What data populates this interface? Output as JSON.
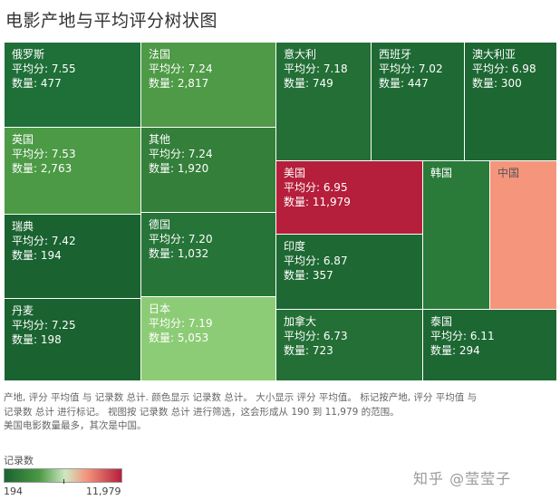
{
  "title": "电影产地与平均评分树状图",
  "chart_data": {
    "type": "treemap",
    "size_measure": "评分 平均值",
    "color_measure": "记录数",
    "tiles": [
      {
        "country": "俄罗斯",
        "avg_label": "平均分: 7.55",
        "count_label": "数量: 477",
        "avg": 7.55,
        "count": 477,
        "color": "#1f6f38"
      },
      {
        "country": "法国",
        "avg_label": "平均分: 7.24",
        "count_label": "数量: 2,817",
        "avg": 7.24,
        "count": 2817,
        "color": "#4e9a46"
      },
      {
        "country": "意大利",
        "avg_label": "平均分: 7.18",
        "count_label": "数量: 749",
        "avg": 7.18,
        "count": 749,
        "color": "#236f36"
      },
      {
        "country": "西班牙",
        "avg_label": "平均分: 7.02",
        "count_label": "数量: 447",
        "avg": 7.02,
        "count": 447,
        "color": "#1f6a34"
      },
      {
        "country": "澳大利亚",
        "avg_label": "平均分: 6.98",
        "count_label": "数量: 300",
        "avg": 6.98,
        "count": 300,
        "color": "#1d6732"
      },
      {
        "country": "英国",
        "avg_label": "平均分: 7.53",
        "count_label": "数量: 2,763",
        "avg": 7.53,
        "count": 2763,
        "color": "#4c9a45"
      },
      {
        "country": "其他",
        "avg_label": "平均分: 7.24",
        "count_label": "数量: 1,920",
        "avg": 7.24,
        "count": 1920,
        "color": "#347f3a"
      },
      {
        "country": "美国",
        "avg_label": "平均分: 6.95",
        "count_label": "数量: 11,979",
        "avg": 6.95,
        "count": 11979,
        "color": "#b51f3b"
      },
      {
        "country": "韩国",
        "avg_label": "",
        "count_label": "",
        "avg": null,
        "count": null,
        "color": "#2a7a3a"
      },
      {
        "country": "中国",
        "avg_label": "",
        "count_label": "",
        "avg": null,
        "count": null,
        "color": "#f5957c"
      },
      {
        "country": "瑞典",
        "avg_label": "平均分: 7.42",
        "count_label": "数量: 194",
        "avg": 7.42,
        "count": 194,
        "color": "#1a6330"
      },
      {
        "country": "德国",
        "avg_label": "平均分: 7.20",
        "count_label": "数量: 1,032",
        "avg": 7.2,
        "count": 1032,
        "color": "#277439"
      },
      {
        "country": "印度",
        "avg_label": "平均分: 6.87",
        "count_label": "数量: 357",
        "avg": 6.87,
        "count": 357,
        "color": "#1e6833"
      },
      {
        "country": "丹麦",
        "avg_label": "平均分: 7.25",
        "count_label": "数量: 198",
        "avg": 7.25,
        "count": 198,
        "color": "#1a6330"
      },
      {
        "country": "日本",
        "avg_label": "平均分: 7.19",
        "count_label": "数量: 5,053",
        "avg": 7.19,
        "count": 5053,
        "color": "#8dcc76"
      },
      {
        "country": "加拿大",
        "avg_label": "平均分: 6.73",
        "count_label": "数量: 723",
        "avg": 6.73,
        "count": 723,
        "color": "#236f36"
      },
      {
        "country": "泰国",
        "avg_label": "平均分: 6.11",
        "count_label": "数量: 294",
        "avg": 6.11,
        "count": 294,
        "color": "#1d6732"
      }
    ]
  },
  "caption": {
    "line1": "产地, 评分 平均值 与 记录数 总计. 颜色显示 记录数 总计。 大小显示 评分 平均值。 标记按产地, 评分 平均值 与",
    "line2": "记录数 总计 进行标记。 视图按 记录数 总计 进行筛选，这会形成从 190 到 11,979 的范围。",
    "line3": "美国电影数量最多，其次是中国。"
  },
  "legend": {
    "title": "记录数",
    "min_label": "194",
    "max_label": "11,979",
    "colors": {
      "low": "#1a6330",
      "mid_green": "#4c9a45",
      "light": "#cfe8c2",
      "pink": "#f5957c",
      "high": "#b51f3b"
    }
  },
  "watermark": "知乎 @莹莹子"
}
